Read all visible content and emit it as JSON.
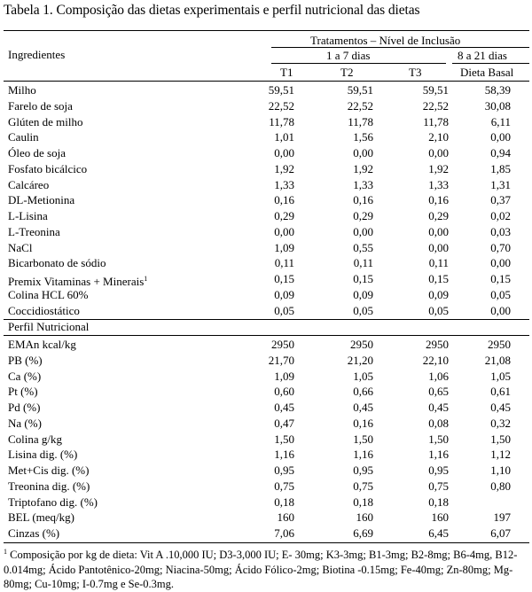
{
  "caption": "Tabela 1. Composição das dietas experimentais e perfil nutricional das dietas",
  "header": {
    "ingredients_label": "Ingredientes",
    "treatments_label": "Tratamentos – Nível de Inclusão",
    "period1": "1 a 7 dias",
    "period2": "8 a 21 dias",
    "col_t1": "T1",
    "col_t2": "T2",
    "col_t3": "T3",
    "col_basal": "Dieta Basal"
  },
  "ingredients": [
    {
      "label": "Milho",
      "t1": "59,51",
      "t2": "59,51",
      "t3": "59,51",
      "basal": "58,39"
    },
    {
      "label": "Farelo de soja",
      "t1": "22,52",
      "t2": "22,52",
      "t3": "22,52",
      "basal": "30,08"
    },
    {
      "label": "Glúten de milho",
      "t1": "11,78",
      "t2": "11,78",
      "t3": "11,78",
      "basal": "6,11"
    },
    {
      "label": "Caulin",
      "t1": "1,01",
      "t2": "1,56",
      "t3": "2,10",
      "basal": "0,00"
    },
    {
      "label": "Óleo de soja",
      "t1": "0,00",
      "t2": "0,00",
      "t3": "0,00",
      "basal": "0,94"
    },
    {
      "label": "Fosfato bicálcico",
      "t1": "1,92",
      "t2": "1,92",
      "t3": "1,92",
      "basal": "1,85"
    },
    {
      "label": "Calcáreo",
      "t1": "1,33",
      "t2": "1,33",
      "t3": "1,33",
      "basal": "1,31"
    },
    {
      "label": "DL-Metionina",
      "t1": "0,16",
      "t2": "0,16",
      "t3": "0,16",
      "basal": "0,37"
    },
    {
      "label": "L-Lisina",
      "t1": "0,29",
      "t2": "0,29",
      "t3": "0,29",
      "basal": "0,02"
    },
    {
      "label": "L-Treonina",
      "t1": "0,00",
      "t2": "0,00",
      "t3": "0,00",
      "basal": "0,03"
    },
    {
      "label": "NaCl",
      "t1": "1,09",
      "t2": "0,55",
      "t3": "0,00",
      "basal": "0,70"
    },
    {
      "label": "Bicarbonato de sódio",
      "t1": "0,11",
      "t2": "0,11",
      "t3": "0,11",
      "basal": "0,00"
    },
    {
      "label": "Premix Vitaminas + Minerais",
      "sup": "1",
      "t1": "0,15",
      "t2": "0,15",
      "t3": "0,15",
      "basal": "0,15"
    },
    {
      "label": "Colina HCL 60%",
      "t1": "0,09",
      "t2": "0,09",
      "t3": "0,09",
      "basal": "0,05"
    },
    {
      "label": "Coccidiostático",
      "t1": "0,05",
      "t2": "0,05",
      "t3": "0,05",
      "basal": "0,00"
    }
  ],
  "nutritional_label": "Perfil Nutricional",
  "nutritional": [
    {
      "label": "EMAn kcal/kg",
      "t1": "2950",
      "t2": "2950",
      "t3": "2950",
      "basal": "2950"
    },
    {
      "label": "PB (%)",
      "t1": "21,70",
      "t2": "21,20",
      "t3": "22,10",
      "basal": "21,08"
    },
    {
      "label": "Ca (%)",
      "t1": "1,09",
      "t2": "1,05",
      "t3": "1,06",
      "basal": "1,05"
    },
    {
      "label": "Pt (%)",
      "t1": "0,60",
      "t2": "0,66",
      "t3": "0,65",
      "basal": "0,61"
    },
    {
      "label": "Pd (%)",
      "t1": "0,45",
      "t2": "0,45",
      "t3": "0,45",
      "basal": "0,45"
    },
    {
      "label": "Na (%)",
      "t1": "0,47",
      "t2": "0,16",
      "t3": "0,08",
      "basal": "0,32"
    },
    {
      "label": "Colina g/kg",
      "t1": "1,50",
      "t2": "1,50",
      "t3": "1,50",
      "basal": "1,50"
    },
    {
      "label": "Lisina dig. (%)",
      "t1": "1,16",
      "t2": "1,16",
      "t3": "1,16",
      "basal": "1,12"
    },
    {
      "label": "Met+Cis dig. (%)",
      "t1": "0,95",
      "t2": "0,95",
      "t3": "0,95",
      "basal": "1,10"
    },
    {
      "label": "Treonina dig. (%)",
      "t1": "0,75",
      "t2": "0,75",
      "t3": "0,75",
      "basal": "0,80"
    },
    {
      "label": "Triptofano dig. (%)",
      "t1": "0,18",
      "t2": "0,18",
      "t3": "0,18",
      "basal": ""
    },
    {
      "label": "BEL (meq/kg)",
      "t1": "160",
      "t2": "160",
      "t3": "160",
      "basal": "197"
    },
    {
      "label": "Cinzas (%)",
      "t1": "7,06",
      "t2": "6,69",
      "t3": "6,45",
      "basal": "6,07"
    }
  ],
  "footnote": {
    "marker": "1",
    "text": "Composição por kg de dieta: Vit A .10,000 IU; D3-3,000 IU; E- 30mg; K3-3mg; B1-3mg; B2-8mg; B6-4mg, B12-0.014mg; Ácido Pantotênico-20mg; Niacina-50mg; Ácido Fólico-2mg; Biotina -0.15mg; Fe-40mg; Zn-80mg; Mg-80mg; Cu-10mg; I-0.7mg e Se-0.3mg."
  }
}
